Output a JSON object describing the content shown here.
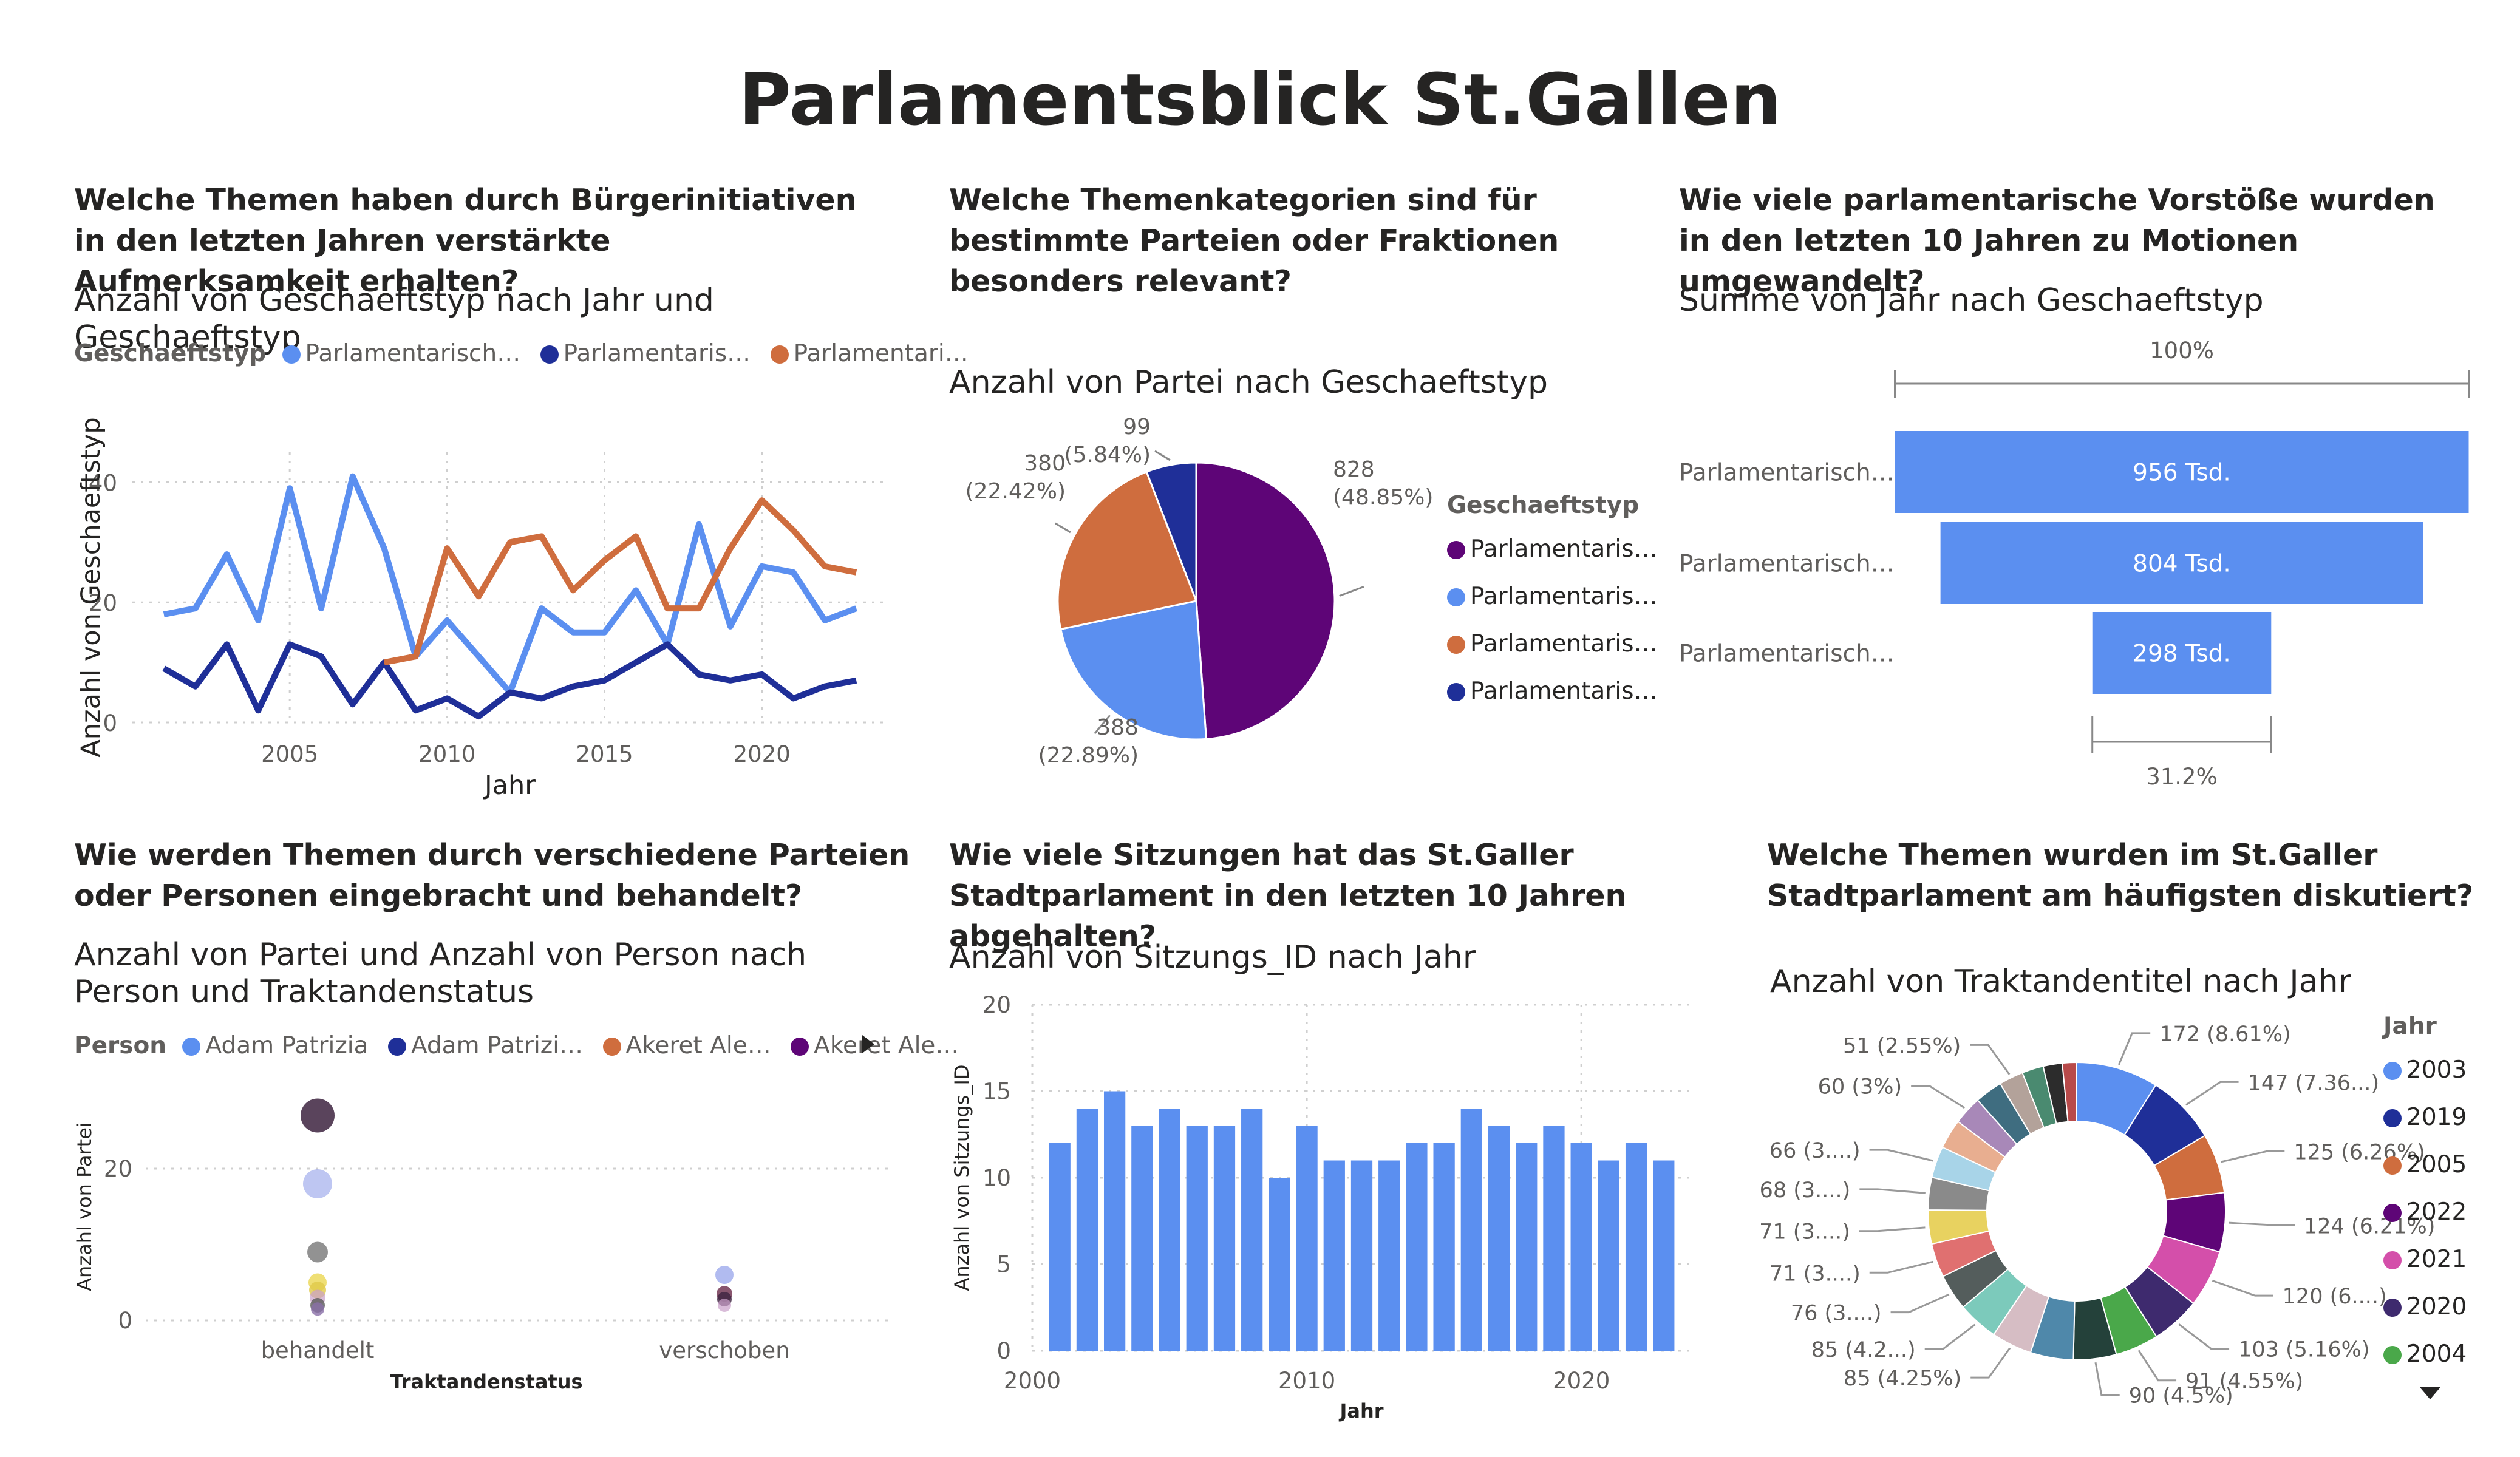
{
  "page": {
    "title": "Parlamentsblick St.Gallen"
  },
  "colors": {
    "blue": "#5b8ff0",
    "navy": "#1f2f98",
    "orange": "#cf6d3e",
    "purple": "#5e0577",
    "axis": "#605e5c",
    "grid": "#d7d7d7"
  },
  "panels": {
    "p1": {
      "question": "Welche Themen haben durch Bürgerinitiativen in den letzten Jahren verstärkte Aufmerksamkeit erhalten?",
      "subtitle": "Anzahl von Geschaeftstyp nach Jahr und Geschaeftstyp"
    },
    "p2": {
      "question": "Welche Themenkategorien sind für bestimmte Parteien oder Fraktionen besonders relevant?",
      "subtitle": "Anzahl von Partei nach Geschaeftstyp"
    },
    "p3": {
      "question": "Wie viele parlamentarische Vorstöße wurden in den letzten 10 Jahren zu Motionen umgewandelt?",
      "subtitle": "Summe von Jahr nach Geschaeftstyp"
    },
    "p4": {
      "question": "Wie werden Themen durch verschiedene Parteien oder Personen eingebracht und behandelt?",
      "subtitle": "Anzahl von Partei und Anzahl von Person nach Person und Traktandenstatus"
    },
    "p5": {
      "question": "Wie viele Sitzungen hat das St.Galler Stadtparlament in den letzten 10 Jahren abgehalten?",
      "subtitle": "Anzahl von Sitzungs_ID nach Jahr"
    },
    "p6": {
      "question": "Welche Themen wurden im St.Galler Stadtparlament am häufigsten diskutiert?",
      "subtitle": "Anzahl von Traktandentitel nach Jahr"
    }
  },
  "chart_data": [
    {
      "type": "line",
      "xlabel": "Jahr",
      "ylabel": "Anzahl von Geschaeftstyp",
      "ylim": [
        0,
        45
      ],
      "xlim": [
        2000,
        2024
      ],
      "yticks": [
        "0",
        "20",
        "40"
      ],
      "xticks": [
        "2005",
        "2010",
        "2015",
        "2020"
      ],
      "legend_title": "Geschaeftstyp",
      "grid": true,
      "series": [
        {
          "name": "Parlamentarisch…",
          "color": "#5b8ff0",
          "points": [
            [
              2001,
              18
            ],
            [
              2002,
              19
            ],
            [
              2003,
              28
            ],
            [
              2004,
              17
            ],
            [
              2005,
              39
            ],
            [
              2006,
              19
            ],
            [
              2007,
              41
            ],
            [
              2008,
              29
            ],
            [
              2009,
              11
            ],
            [
              2010,
              17
            ],
            [
              2011,
              11
            ],
            [
              2012,
              5
            ],
            [
              2013,
              19
            ],
            [
              2014,
              15
            ],
            [
              2015,
              15
            ],
            [
              2016,
              22
            ],
            [
              2017,
              13
            ],
            [
              2018,
              33
            ],
            [
              2019,
              16
            ],
            [
              2020,
              26
            ],
            [
              2021,
              25
            ],
            [
              2022,
              17
            ],
            [
              2023,
              19
            ]
          ]
        },
        {
          "name": "Parlamentaris…",
          "color": "#1f2f98",
          "points": [
            [
              2001,
              9
            ],
            [
              2002,
              6
            ],
            [
              2003,
              13
            ],
            [
              2004,
              2
            ],
            [
              2005,
              13
            ],
            [
              2006,
              11
            ],
            [
              2007,
              3
            ],
            [
              2008,
              10
            ],
            [
              2009,
              2
            ],
            [
              2010,
              4
            ],
            [
              2011,
              1
            ],
            [
              2012,
              5
            ],
            [
              2013,
              4
            ],
            [
              2014,
              6
            ],
            [
              2015,
              7
            ],
            [
              2016,
              10
            ],
            [
              2017,
              13
            ],
            [
              2018,
              8
            ],
            [
              2019,
              7
            ],
            [
              2020,
              8
            ],
            [
              2021,
              4
            ],
            [
              2022,
              6
            ],
            [
              2023,
              7
            ]
          ]
        },
        {
          "name": "Parlamentari…",
          "color": "#cf6d3e",
          "points": [
            [
              2008,
              10
            ],
            [
              2009,
              11
            ],
            [
              2010,
              29
            ],
            [
              2011,
              21
            ],
            [
              2012,
              30
            ],
            [
              2013,
              31
            ],
            [
              2014,
              22
            ],
            [
              2015,
              27
            ],
            [
              2016,
              31
            ],
            [
              2017,
              19
            ],
            [
              2018,
              19
            ],
            [
              2019,
              29
            ],
            [
              2020,
              37
            ],
            [
              2021,
              32
            ],
            [
              2022,
              26
            ],
            [
              2023,
              25
            ]
          ]
        }
      ]
    },
    {
      "type": "pie",
      "legend_title": "Geschaeftstyp",
      "slices": [
        {
          "name": "Parlamentaris…",
          "value": 828,
          "label": "828",
          "pct": "(48.85%)",
          "color": "#5e0577"
        },
        {
          "name": "Parlamentaris…",
          "value": 388,
          "label": "388",
          "pct": "(22.89%)",
          "color": "#5b8ff0"
        },
        {
          "name": "Parlamentaris…",
          "value": 380,
          "label": "380",
          "pct": "(22.42%)",
          "color": "#cf6d3e"
        },
        {
          "name": "Parlamentaris…",
          "value": 99,
          "label": "99",
          "pct": "(5.84%)",
          "color": "#1f2f98"
        }
      ]
    },
    {
      "type": "bar",
      "orientation": "funnel",
      "top_label": "100%",
      "bottom_label": "31.2%",
      "color": "#5b8ff0",
      "categories": [
        "Parlamentarisch…",
        "Parlamentarisch…",
        "Parlamentarisch…"
      ],
      "values": [
        956,
        804,
        298
      ],
      "value_labels": [
        "956 Tsd.",
        "804 Tsd.",
        "298 Tsd."
      ]
    },
    {
      "type": "scatter",
      "xlabel": "Traktandenstatus",
      "ylabel": "Anzahl von Partei",
      "ylim": [
        0,
        30
      ],
      "yticks": [
        "0",
        "20"
      ],
      "categories": [
        "behandelt",
        "verschoben"
      ],
      "legend_title": "Person",
      "legend": [
        {
          "name": "Adam Patrizia",
          "color": "#5b8ff0"
        },
        {
          "name": "Adam Patrizi…",
          "color": "#1f2f98"
        },
        {
          "name": "Akeret Ale…",
          "color": "#cf6d3e"
        },
        {
          "name": "Akeret Ale…",
          "color": "#5e0577"
        }
      ],
      "points": [
        {
          "category": 0,
          "y": 27,
          "size": 28,
          "color": "#3d2340",
          "opacity": 0.85
        },
        {
          "category": 0,
          "y": 18,
          "size": 24,
          "color": "#7d8ee6",
          "opacity": 0.5
        },
        {
          "category": 0,
          "y": 9,
          "size": 17,
          "color": "#4a4a4a",
          "opacity": 0.6
        },
        {
          "category": 0,
          "y": 5,
          "size": 15,
          "color": "#e8d23a",
          "opacity": 0.7
        },
        {
          "category": 0,
          "y": 4,
          "size": 14,
          "color": "#e0c94a",
          "opacity": 0.8
        },
        {
          "category": 0,
          "y": 3,
          "size": 13,
          "color": "#c9a0c9",
          "opacity": 0.7
        },
        {
          "category": 0,
          "y": 2,
          "size": 12,
          "color": "#5a5a5a",
          "opacity": 0.8
        },
        {
          "category": 0,
          "y": 1.5,
          "size": 11,
          "color": "#8a6fa8",
          "opacity": 0.8
        },
        {
          "category": 1,
          "y": 6,
          "size": 15,
          "color": "#7d8ee6",
          "opacity": 0.6
        },
        {
          "category": 1,
          "y": 3.5,
          "size": 13,
          "color": "#6a2a4a",
          "opacity": 0.8
        },
        {
          "category": 1,
          "y": 2.8,
          "size": 12,
          "color": "#3d2340",
          "opacity": 0.8
        },
        {
          "category": 1,
          "y": 2,
          "size": 11,
          "color": "#c9a0c9",
          "opacity": 0.7
        }
      ]
    },
    {
      "type": "bar",
      "xlabel": "Jahr",
      "ylabel": "Anzahl von Sitzungs_ID",
      "ylim": [
        0,
        20
      ],
      "xlim": [
        2000,
        2024
      ],
      "yticks": [
        "0",
        "5",
        "10",
        "15",
        "20"
      ],
      "xticks": [
        "2000",
        "2010",
        "2020"
      ],
      "color": "#5b8ff0",
      "x": [
        2001,
        2002,
        2003,
        2004,
        2005,
        2006,
        2007,
        2008,
        2009,
        2010,
        2011,
        2012,
        2013,
        2014,
        2015,
        2016,
        2017,
        2018,
        2019,
        2020,
        2021,
        2022,
        2023
      ],
      "values": [
        12,
        14,
        15,
        13,
        14,
        13,
        13,
        14,
        10,
        13,
        11,
        11,
        11,
        12,
        12,
        14,
        13,
        12,
        13,
        12,
        11,
        12,
        11
      ]
    },
    {
      "type": "pie",
      "variant": "donut",
      "legend_title": "Jahr",
      "legend": [
        {
          "name": "2003",
          "color": "#5b8ff0"
        },
        {
          "name": "2019",
          "color": "#1f2f98"
        },
        {
          "name": "2005",
          "color": "#cf6d3e"
        },
        {
          "name": "2022",
          "color": "#5e0577"
        },
        {
          "name": "2021",
          "color": "#d44faa"
        },
        {
          "name": "2020",
          "color": "#3e2a6e"
        },
        {
          "name": "2004",
          "color": "#4aa84a"
        }
      ],
      "slices": [
        {
          "value": 172,
          "label": "172 (8.61%)",
          "color": "#5b8ff0"
        },
        {
          "value": 147,
          "label": "147 (7.36...)",
          "color": "#1f2f98"
        },
        {
          "value": 125,
          "label": "125 (6.26%)",
          "color": "#cf6d3e"
        },
        {
          "value": 124,
          "label": "124 (6.21%)",
          "color": "#5e0577"
        },
        {
          "value": 120,
          "label": "120 (6....)",
          "color": "#d44faa"
        },
        {
          "value": 103,
          "label": "103 (5.16%)",
          "color": "#3e2a6e"
        },
        {
          "value": 91,
          "label": "91 (4.55%)",
          "color": "#4aa84a"
        },
        {
          "value": 90,
          "label": "90 (4.5%)",
          "color": "#24413a"
        },
        {
          "value": 90,
          "label": "",
          "color": "#4f88aa"
        },
        {
          "value": 85,
          "label": "85 (4.25%)",
          "color": "#d6bdc4"
        },
        {
          "value": 85,
          "label": "85 (4.2...)",
          "color": "#7ccabb"
        },
        {
          "value": 76,
          "label": "76 (3....)",
          "color": "#545d5c"
        },
        {
          "value": 71,
          "label": "71 (3....)",
          "color": "#e07070"
        },
        {
          "value": 71,
          "label": "71 (3....)",
          "color": "#e8d260"
        },
        {
          "value": 68,
          "label": "68 (3....)",
          "color": "#8a8a8a"
        },
        {
          "value": 66,
          "label": "66 (3....)",
          "color": "#a8d4e8"
        },
        {
          "value": 62,
          "label": "",
          "color": "#e8ae90"
        },
        {
          "value": 60,
          "label": "60 (3%)",
          "color": "#a888b8"
        },
        {
          "value": 58,
          "label": "",
          "color": "#3f6d80"
        },
        {
          "value": 51,
          "label": "51 (2.55%)",
          "color": "#b3a29a"
        },
        {
          "value": 45,
          "label": "",
          "color": "#4a8a70"
        },
        {
          "value": 40,
          "label": "",
          "color": "#2c2c2c"
        },
        {
          "value": 30,
          "label": "",
          "color": "#b84a4a"
        }
      ]
    }
  ]
}
